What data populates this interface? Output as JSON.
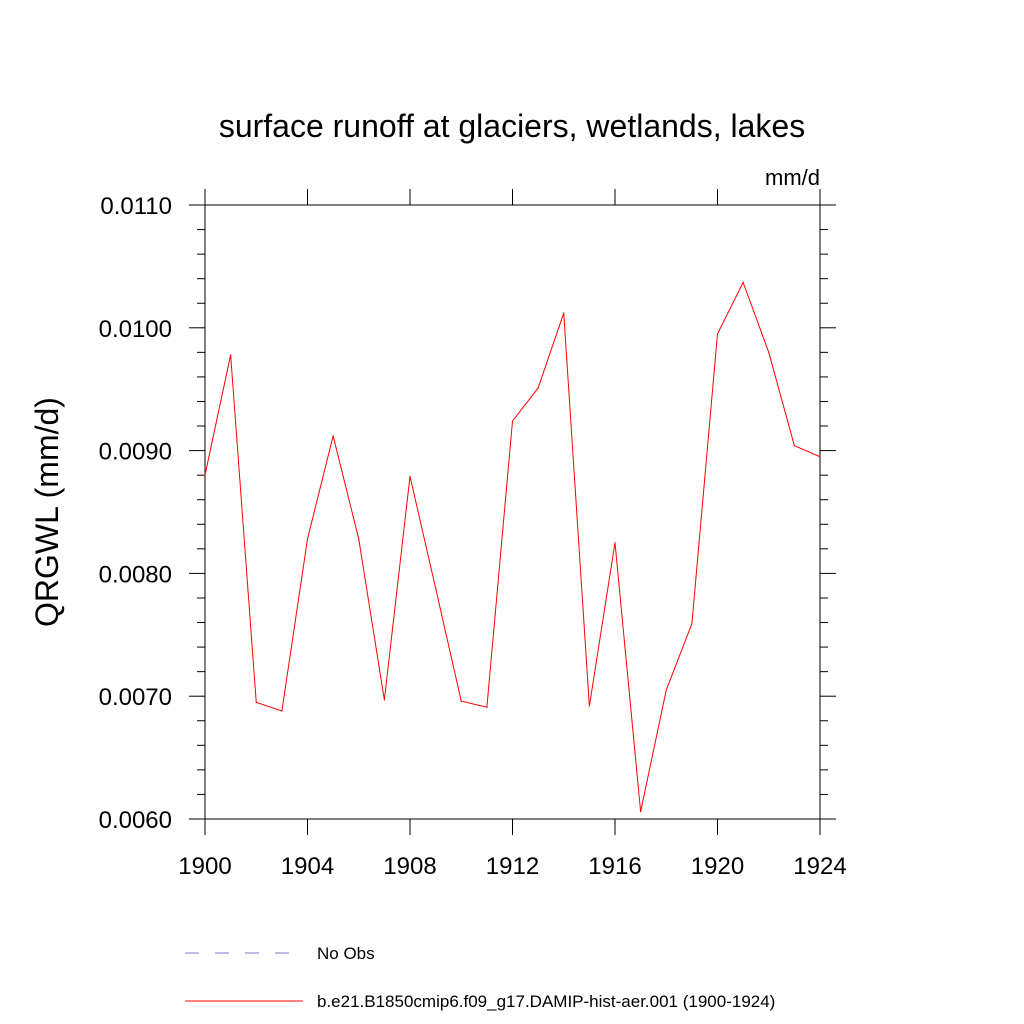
{
  "chart_data": {
    "type": "line",
    "title": "surface runoff at glaciers, wetlands, lakes",
    "units": "mm/d",
    "ylabel": "QRGWL  (mm/d)",
    "xlabel": "",
    "xlim": [
      1900,
      1924
    ],
    "ylim": [
      0.006,
      0.011
    ],
    "x_ticks": [
      1900,
      1904,
      1908,
      1912,
      1916,
      1920,
      1924
    ],
    "x_tick_labels": [
      "1900",
      "1904",
      "1908",
      "1912",
      "1916",
      "1920",
      "1924"
    ],
    "y_ticks": [
      0.006,
      0.007,
      0.008,
      0.009,
      0.01,
      0.011
    ],
    "y_tick_labels": [
      "0.0060",
      "0.0070",
      "0.0080",
      "0.0090",
      "0.0100",
      "0.0110"
    ],
    "grid": false,
    "legend_position": "bottom",
    "series": [
      {
        "name": "b.e21.B1850cmip6.f09_g17.DAMIP-hist-aer.001 (1900-1924)",
        "color": "#ff0000",
        "style": "solid",
        "x": [
          1900,
          1901,
          1902,
          1903,
          1904,
          1905,
          1906,
          1907,
          1908,
          1909,
          1910,
          1911,
          1912,
          1913,
          1914,
          1915,
          1916,
          1917,
          1918,
          1919,
          1920,
          1921,
          1922,
          1923,
          1924
        ],
        "y": [
          0.0088,
          0.00978,
          0.00695,
          0.00688,
          0.00828,
          0.00912,
          0.00828,
          0.00697,
          0.00879,
          0.00788,
          0.00696,
          0.00691,
          0.00924,
          0.00951,
          0.01012,
          0.00692,
          0.00825,
          0.00606,
          0.00705,
          0.00759,
          0.00995,
          0.01037,
          0.0098,
          0.00904,
          0.00895
        ]
      }
    ],
    "legend": [
      {
        "label": "No Obs",
        "color": "#7b7bd6",
        "style": "dashed"
      },
      {
        "label": "b.e21.B1850cmip6.f09_g17.DAMIP-hist-aer.001 (1900-1924)",
        "color": "#ff0000",
        "style": "solid"
      }
    ]
  }
}
